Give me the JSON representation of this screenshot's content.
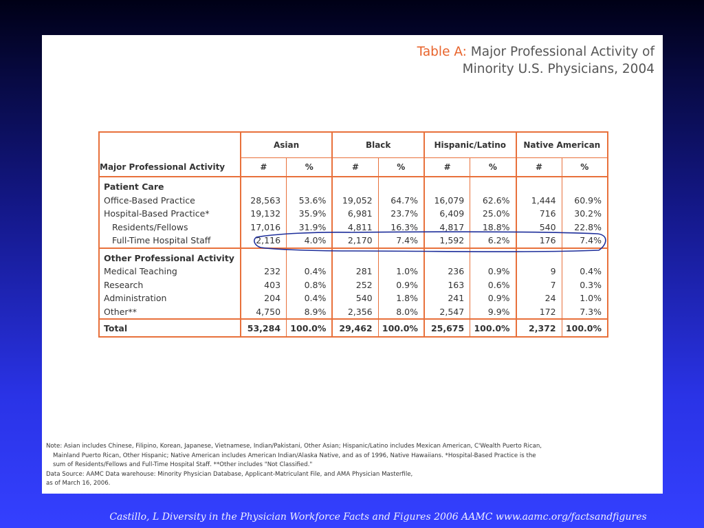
{
  "title": {
    "prefix": "Table A:",
    "line1": "Major Professional Activity of",
    "line2": "Minority U.S. Physicians, 2004"
  },
  "table": {
    "row_header": "Major Professional Activity",
    "groups": [
      "Asian",
      "Black",
      "Hispanic/Latino",
      "Native American"
    ],
    "subheaders": [
      "#",
      "%"
    ],
    "rows": [
      {
        "label": "Patient Care",
        "kind": "header",
        "cells": []
      },
      {
        "label": "Office-Based Practice",
        "cells": [
          "28,563",
          "53.6%",
          "19,052",
          "64.7%",
          "16,079",
          "62.6%",
          "1,444",
          "60.9%"
        ]
      },
      {
        "label": "Hospital-Based Practice*",
        "cells": [
          "19,132",
          "35.9%",
          "6,981",
          "23.7%",
          "6,409",
          "25.0%",
          "716",
          "30.2%"
        ]
      },
      {
        "label": "Residents/Fellows",
        "indent": true,
        "cells": [
          "17,016",
          "31.9%",
          "4,811",
          "16.3%",
          "4,817",
          "18.8%",
          "540",
          "22.8%"
        ]
      },
      {
        "label": "Full-Time Hospital Staff",
        "indent": true,
        "section_end": true,
        "cells": [
          "2,116",
          "4.0%",
          "2,170",
          "7.4%",
          "1,592",
          "6.2%",
          "176",
          "7.4%"
        ]
      },
      {
        "label": "Other Professional Activity",
        "kind": "header",
        "cells": []
      },
      {
        "label": "Medical Teaching",
        "cells": [
          "232",
          "0.4%",
          "281",
          "1.0%",
          "236",
          "0.9%",
          "9",
          "0.4%"
        ]
      },
      {
        "label": "Research",
        "cells": [
          "403",
          "0.8%",
          "252",
          "0.9%",
          "163",
          "0.6%",
          "7",
          "0.3%"
        ]
      },
      {
        "label": "Administration",
        "cells": [
          "204",
          "0.4%",
          "540",
          "1.8%",
          "241",
          "0.9%",
          "24",
          "1.0%"
        ]
      },
      {
        "label": "Other**",
        "cells": [
          "4,750",
          "8.9%",
          "2,356",
          "8.0%",
          "2,547",
          "9.9%",
          "172",
          "7.3%"
        ]
      }
    ],
    "total": {
      "label": "Total",
      "cells": [
        "53,284",
        "100.0%",
        "29,462",
        "100.0%",
        "25,675",
        "100.0%",
        "2,372",
        "100.0%"
      ]
    }
  },
  "note": [
    "Note: Asian includes Chinese, Filipino, Korean, Japanese, Vietnamese, Indian/Pakistani, Other Asian; Hispanic/Latino includes Mexican American, C'Wealth Puerto Rican,",
    "Mainland Puerto Rican, Other Hispanic; Native American includes American Indian/Alaska Native, and as of 1996, Native Hawaiians. *Hospital-Based Practice is the",
    "sum of Residents/Fellows and Full-Time Hospital Staff. **Other includes \"Not Classified.\"",
    "Data Source: AAMC Data warehouse: Minority Physician Database, Applicant-Matriculant File, and AMA Physician Masterfile,",
    "as of March 16, 2006."
  ],
  "credit": "Castillo, L Diversity in the Physician Workforce Facts and Figures  2006  AAMC www.aamc.org/factsandfigures",
  "colors": {
    "accent": "#e8703a",
    "annotation": "#1c2d9a"
  }
}
